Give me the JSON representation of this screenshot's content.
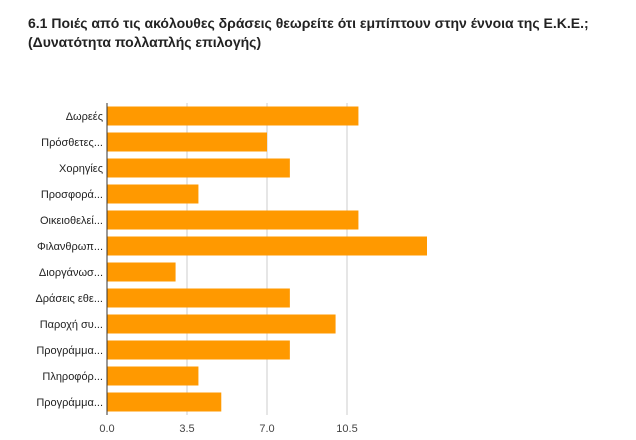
{
  "title": {
    "line1": "6.1 Ποιές από τις ακόλουθες δράσεις θεωρείτε ότι εμπίπτουν στην έννοια της Ε.Κ.Ε.;",
    "line2": "(Δυνατότητα πολλαπλής επιλογής)"
  },
  "chart_data": {
    "type": "bar",
    "orientation": "horizontal",
    "title": "6.1 Ποιές από τις ακόλουθες δράσεις θεωρείτε ότι εμπίπτουν στην έννοια της Ε.Κ.Ε.; (Δυνατότητα πολλαπλής επιλογής)",
    "categories": [
      "Δωρεές",
      "Πρόσθετες...",
      "Χορηγίες",
      "Προσφορά...",
      "Οικειοθελεί...",
      "Φιλανθρωπ...",
      "Διοργάνωσ...",
      "Δράσεις εθε...",
      "Παροχή συ...",
      "Προγράμμα...",
      "Πληροφόρ...",
      "Προγράμμα..."
    ],
    "values": [
      11,
      7,
      8,
      4,
      11,
      14,
      3,
      8,
      10,
      8,
      4,
      5
    ],
    "xlim": [
      0,
      14
    ],
    "xticks": [
      "0.0",
      "3.5",
      "7.0",
      "10.5"
    ],
    "xtick_values": [
      0,
      3.5,
      7,
      10.5
    ],
    "grid": true,
    "legend": "none",
    "colors": {
      "bar": "#ff9900",
      "grid": "#cccccc",
      "axis": "#333333"
    }
  }
}
